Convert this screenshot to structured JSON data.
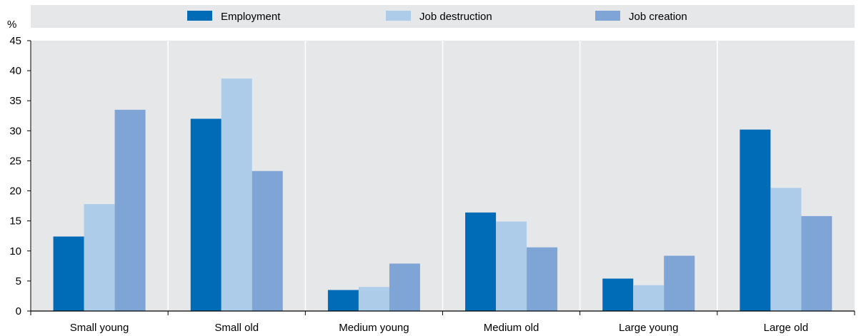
{
  "chart_data": {
    "type": "bar",
    "title": "",
    "xlabel": "",
    "ylabel": "%",
    "ylim": [
      0,
      45
    ],
    "yticks": [
      0,
      5,
      10,
      15,
      20,
      25,
      30,
      35,
      40,
      45
    ],
    "grid": "vertical category separators",
    "legend": "top",
    "categories": [
      "Small young",
      "Small old",
      "Medium young",
      "Medium old",
      "Large young",
      "Large old"
    ],
    "series": [
      {
        "name": "Employment",
        "color": "#006bb6",
        "values": [
          12.4,
          32.0,
          3.5,
          16.4,
          5.4,
          30.2
        ]
      },
      {
        "name": "Job destruction",
        "color": "#acccea",
        "values": [
          17.8,
          38.7,
          4.0,
          14.9,
          4.3,
          20.5
        ]
      },
      {
        "name": "Job creation",
        "color": "#7fa4d6",
        "values": [
          33.5,
          23.3,
          7.9,
          10.6,
          9.2,
          15.8
        ]
      }
    ],
    "background": "#e6e7e9"
  }
}
